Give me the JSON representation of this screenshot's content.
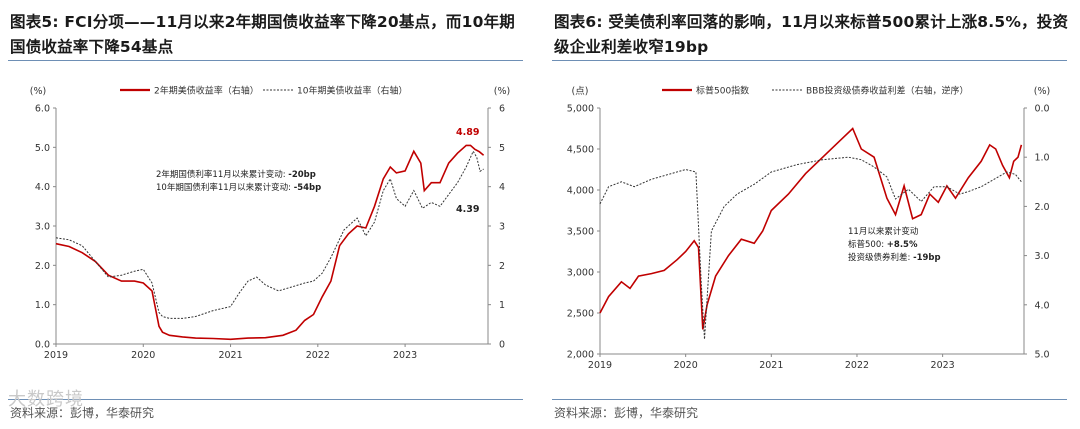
{
  "left": {
    "title": "图表5:  FCI分项——11月以来2年期国债收益率下降20基点，而10年期国债收益率下降54基点",
    "source": "资料来源：彭博，华泰研究",
    "watermark": "大数跨境"
  },
  "right": {
    "title": "图表6:  受美债利率回落的影响，11月以来标普500累计上涨8.5%，投资级企业利差收窄19bp",
    "source": "资料来源：彭博，华泰研究"
  },
  "chart_data": [
    {
      "type": "line",
      "left_axis_unit": "(%)",
      "right_axis_unit": "(%)",
      "ylim": [
        0,
        6
      ],
      "yticks": [
        "0.0",
        "1.0",
        "2.0",
        "3.0",
        "4.0",
        "5.0",
        "6.0"
      ],
      "yticks_right": [
        "0",
        "1",
        "2",
        "3",
        "4",
        "5",
        "6"
      ],
      "xticks": [
        "2019",
        "2020",
        "2021",
        "2022",
        "2023"
      ],
      "xlim": [
        2019.0,
        2023.95
      ],
      "series": [
        {
          "name": "2年期美债收益率（右轴）",
          "color": "#c00000",
          "style": "solid",
          "x": [
            2019.0,
            2019.15,
            2019.3,
            2019.45,
            2019.6,
            2019.75,
            2019.9,
            2020.0,
            2020.1,
            2020.18,
            2020.22,
            2020.3,
            2020.45,
            2020.6,
            2020.8,
            2021.0,
            2021.2,
            2021.4,
            2021.6,
            2021.75,
            2021.85,
            2021.95,
            2022.05,
            2022.15,
            2022.25,
            2022.35,
            2022.45,
            2022.55,
            2022.65,
            2022.75,
            2022.83,
            2022.9,
            2023.0,
            2023.1,
            2023.18,
            2023.22,
            2023.3,
            2023.4,
            2023.5,
            2023.6,
            2023.7,
            2023.75,
            2023.8,
            2023.85,
            2023.9
          ],
          "y": [
            2.55,
            2.48,
            2.32,
            2.1,
            1.75,
            1.6,
            1.6,
            1.55,
            1.35,
            0.45,
            0.3,
            0.22,
            0.18,
            0.15,
            0.14,
            0.12,
            0.15,
            0.16,
            0.22,
            0.35,
            0.6,
            0.75,
            1.2,
            1.6,
            2.5,
            2.8,
            3.0,
            2.95,
            3.5,
            4.2,
            4.5,
            4.35,
            4.4,
            4.9,
            4.6,
            3.9,
            4.1,
            4.1,
            4.6,
            4.85,
            5.05,
            5.05,
            4.95,
            4.89,
            4.8
          ]
        },
        {
          "name": "10年期美债收益率（右轴）",
          "color": "#333333",
          "style": "dotted",
          "x": [
            2019.0,
            2019.15,
            2019.3,
            2019.45,
            2019.6,
            2019.75,
            2019.9,
            2020.0,
            2020.1,
            2020.18,
            2020.22,
            2020.3,
            2020.45,
            2020.6,
            2020.8,
            2021.0,
            2021.1,
            2021.2,
            2021.3,
            2021.4,
            2021.55,
            2021.7,
            2021.85,
            2021.95,
            2022.05,
            2022.15,
            2022.3,
            2022.45,
            2022.55,
            2022.65,
            2022.75,
            2022.83,
            2022.9,
            2023.0,
            2023.1,
            2023.2,
            2023.3,
            2023.4,
            2023.5,
            2023.6,
            2023.7,
            2023.78,
            2023.82,
            2023.86,
            2023.9
          ],
          "y": [
            2.7,
            2.65,
            2.5,
            2.1,
            1.7,
            1.75,
            1.85,
            1.9,
            1.55,
            0.8,
            0.7,
            0.65,
            0.65,
            0.7,
            0.85,
            0.95,
            1.3,
            1.6,
            1.7,
            1.5,
            1.35,
            1.45,
            1.55,
            1.6,
            1.8,
            2.2,
            2.9,
            3.2,
            2.75,
            3.1,
            3.9,
            4.2,
            3.7,
            3.5,
            3.9,
            3.45,
            3.6,
            3.5,
            3.8,
            4.1,
            4.5,
            4.9,
            4.75,
            4.39,
            4.45
          ]
        }
      ],
      "annotations": {
        "line1_label": "2年期国债利率11月以来累计变动: ",
        "line1_value": "-20bp",
        "line2_label": "10年期国债利率11月以来累计变动: ",
        "line2_value": "-54bp",
        "end_label_2y": "4.89",
        "end_label_10y": "4.39"
      }
    },
    {
      "type": "line",
      "left_axis_unit": "(点)",
      "right_axis_unit": "(%)",
      "ylim": [
        2000,
        5000
      ],
      "ylim_right_inverted": [
        0.0,
        5.0
      ],
      "yticks": [
        "2,000",
        "2,500",
        "3,000",
        "3,500",
        "4,000",
        "4,500",
        "5,000"
      ],
      "yticks_right": [
        "0.0",
        "1.0",
        "2.0",
        "3.0",
        "4.0",
        "5.0"
      ],
      "xticks": [
        "2019",
        "2020",
        "2021",
        "2022",
        "2023"
      ],
      "xlim": [
        2019.0,
        2023.95
      ],
      "series": [
        {
          "name": "标普500指数",
          "color": "#c00000",
          "style": "solid",
          "axis": "left",
          "x": [
            2019.0,
            2019.1,
            2019.25,
            2019.35,
            2019.45,
            2019.6,
            2019.75,
            2019.9,
            2020.0,
            2020.1,
            2020.15,
            2020.2,
            2020.25,
            2020.35,
            2020.5,
            2020.65,
            2020.8,
            2020.9,
            2021.0,
            2021.2,
            2021.4,
            2021.6,
            2021.8,
            2021.95,
            2022.05,
            2022.2,
            2022.35,
            2022.45,
            2022.55,
            2022.65,
            2022.75,
            2022.85,
            2022.95,
            2023.05,
            2023.15,
            2023.3,
            2023.45,
            2023.55,
            2023.62,
            2023.7,
            2023.78,
            2023.83,
            2023.88,
            2023.92
          ],
          "y": [
            2500,
            2700,
            2880,
            2800,
            2950,
            2980,
            3020,
            3150,
            3250,
            3380,
            3300,
            2300,
            2600,
            2950,
            3200,
            3400,
            3350,
            3500,
            3750,
            3950,
            4200,
            4400,
            4600,
            4750,
            4500,
            4400,
            3900,
            3700,
            4050,
            3650,
            3700,
            3950,
            3850,
            4050,
            3900,
            4150,
            4350,
            4550,
            4500,
            4300,
            4150,
            4350,
            4400,
            4550
          ]
        },
        {
          "name": "BBB投资级债券收益利差（右轴，逆序）",
          "color": "#333333",
          "style": "dotted",
          "axis": "right",
          "x": [
            2019.0,
            2019.1,
            2019.25,
            2019.4,
            2019.6,
            2019.8,
            2020.0,
            2020.12,
            2020.18,
            2020.22,
            2020.3,
            2020.45,
            2020.6,
            2020.8,
            2021.0,
            2021.3,
            2021.6,
            2021.9,
            2022.05,
            2022.2,
            2022.35,
            2022.45,
            2022.6,
            2022.75,
            2022.9,
            2023.05,
            2023.2,
            2023.3,
            2023.45,
            2023.6,
            2023.75,
            2023.85,
            2023.92
          ],
          "y": [
            1.95,
            1.6,
            1.5,
            1.6,
            1.45,
            1.35,
            1.25,
            1.3,
            3.5,
            4.7,
            2.5,
            2.0,
            1.75,
            1.55,
            1.3,
            1.15,
            1.05,
            1.0,
            1.05,
            1.2,
            1.4,
            1.85,
            1.65,
            1.9,
            1.6,
            1.6,
            1.75,
            1.7,
            1.6,
            1.45,
            1.3,
            1.35,
            1.5
          ]
        }
      ],
      "annotations": {
        "title_line": "11月以来累计变动",
        "sp_label": "标普500: ",
        "sp_value": "+8.5%",
        "spread_label": "投资级债券利差: ",
        "spread_value": "-19bp"
      }
    }
  ]
}
